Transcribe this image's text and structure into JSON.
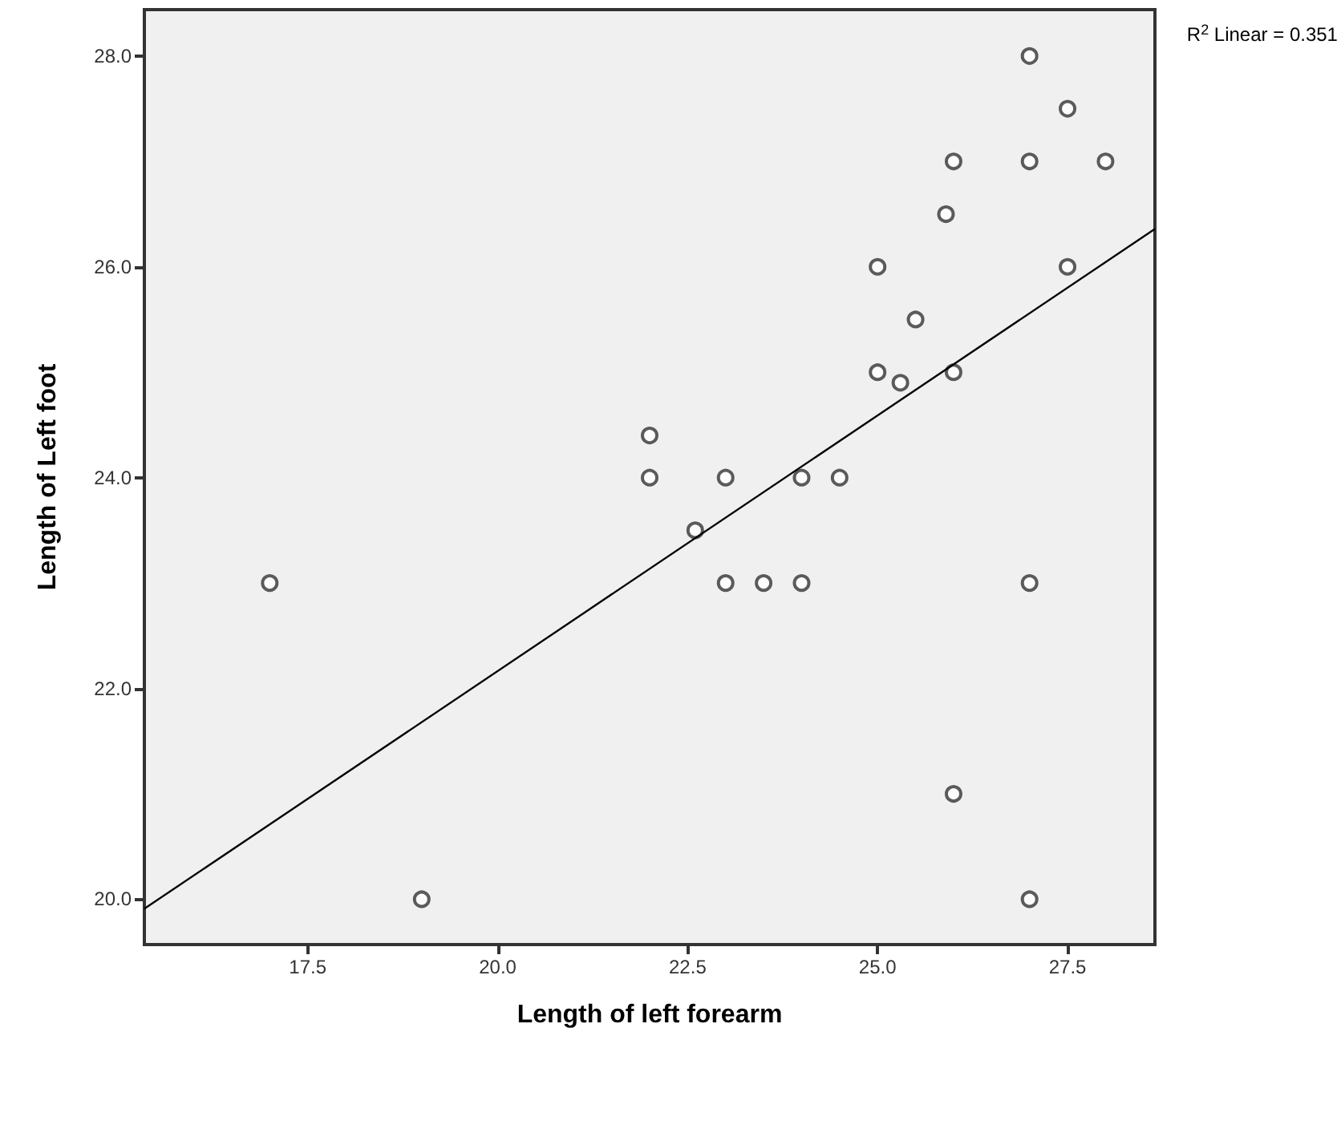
{
  "chart_data": {
    "type": "scatter",
    "xlabel": "Length of left forearm",
    "ylabel": "Length of Left foot",
    "annotations": [
      "R$^{2}$ Linear = 0.351"
    ],
    "xlim": [
      15.35,
      28.65
    ],
    "ylim": [
      19.57,
      28.44
    ],
    "xticks": [
      {
        "value": 17.5,
        "label": "17.5"
      },
      {
        "value": 20,
        "label": "20.0"
      },
      {
        "value": 22.5,
        "label": "22.5"
      },
      {
        "value": 25,
        "label": "25.0"
      },
      {
        "value": 27.5,
        "label": "27.5"
      }
    ],
    "yticks": [
      {
        "value": 20,
        "label": "20.0"
      },
      {
        "value": 22,
        "label": "22.0"
      },
      {
        "value": 24,
        "label": "24.0"
      },
      {
        "value": 26,
        "label": "26.0"
      },
      {
        "value": 28,
        "label": "28.0"
      }
    ],
    "grid": false,
    "marker": "circle",
    "series": [
      {
        "color": "#333333",
        "x": [
          17,
          19,
          22,
          22,
          22.6,
          23,
          23,
          23.5,
          24,
          24,
          24.5,
          25,
          25,
          25.3,
          25.5,
          25.9,
          26,
          26,
          26,
          27,
          27,
          27,
          27,
          27.5,
          27.5,
          28
        ],
        "values": [
          23,
          20,
          24.4,
          24,
          23.5,
          24,
          23,
          23,
          24,
          23,
          24,
          26,
          25,
          24.9,
          25.5,
          26.5,
          27,
          25,
          21,
          28,
          27,
          23,
          20,
          27.5,
          26,
          27
        ]
      },
      {
        "type": "line",
        "color": "#000000",
        "marker": "none",
        "x": [
          15.35,
          28.65
        ],
        "values": [
          19.91,
          26.36
        ]
      }
    ]
  }
}
